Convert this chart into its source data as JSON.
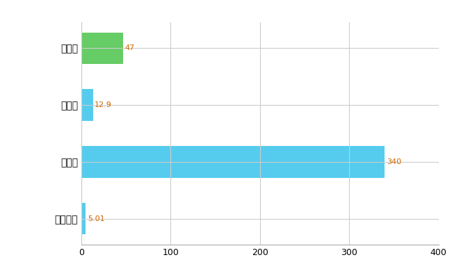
{
  "categories": [
    "市川市",
    "県平均",
    "県最大",
    "全国平均"
  ],
  "values": [
    47,
    12.9,
    340,
    5.01
  ],
  "bar_colors": [
    "#66cc66",
    "#55ccee",
    "#55ccee",
    "#55ccee"
  ],
  "value_labels": [
    "47",
    "12.9",
    "340",
    "5.01"
  ],
  "xlim": [
    0,
    400
  ],
  "xticks": [
    0,
    100,
    200,
    300,
    400
  ],
  "background_color": "#ffffff",
  "grid_color": "#cccccc",
  "label_color": "#cc6600",
  "bar_height": 0.55,
  "figsize": [
    6.5,
    4.0
  ],
  "dpi": 100
}
